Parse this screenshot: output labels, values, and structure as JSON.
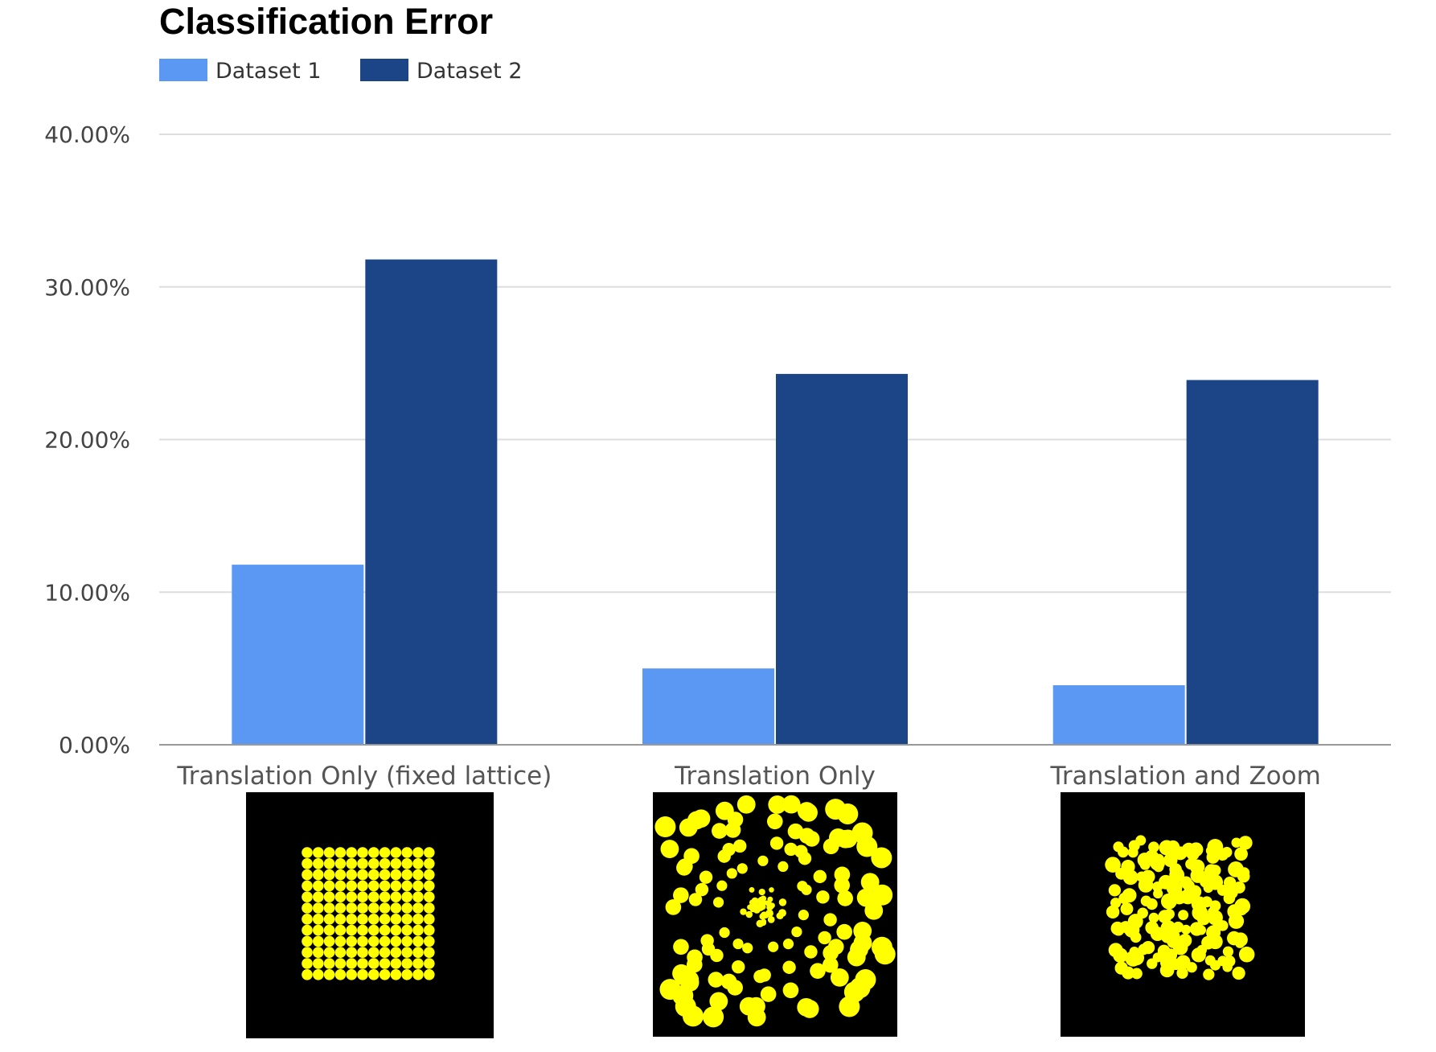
{
  "chart_data": {
    "type": "bar",
    "title": "Classification Error",
    "categories": [
      "Translation Only (fixed lattice)",
      "Translation Only",
      "Translation and Zoom"
    ],
    "series": [
      {
        "name": "Dataset 1",
        "color": "#5b98f4",
        "values": [
          11.8,
          5.0,
          3.9
        ]
      },
      {
        "name": "Dataset 2",
        "color": "#1c4587",
        "values": [
          31.8,
          24.3,
          23.9
        ]
      }
    ],
    "y_ticks": [
      "0.00%",
      "10.00%",
      "20.00%",
      "30.00%",
      "40.00%"
    ],
    "ylim": [
      0,
      40
    ],
    "grid": true,
    "legend_position": "top-left",
    "xlabel": "",
    "ylabel": ""
  },
  "thumbnails": [
    {
      "pattern": "fixed-lattice",
      "background": "#000000",
      "dot_color": "#ffff00"
    },
    {
      "pattern": "random-translation",
      "background": "#000000",
      "dot_color": "#ffff00"
    },
    {
      "pattern": "translation-zoom",
      "background": "#000000",
      "dot_color": "#ffff00"
    }
  ]
}
